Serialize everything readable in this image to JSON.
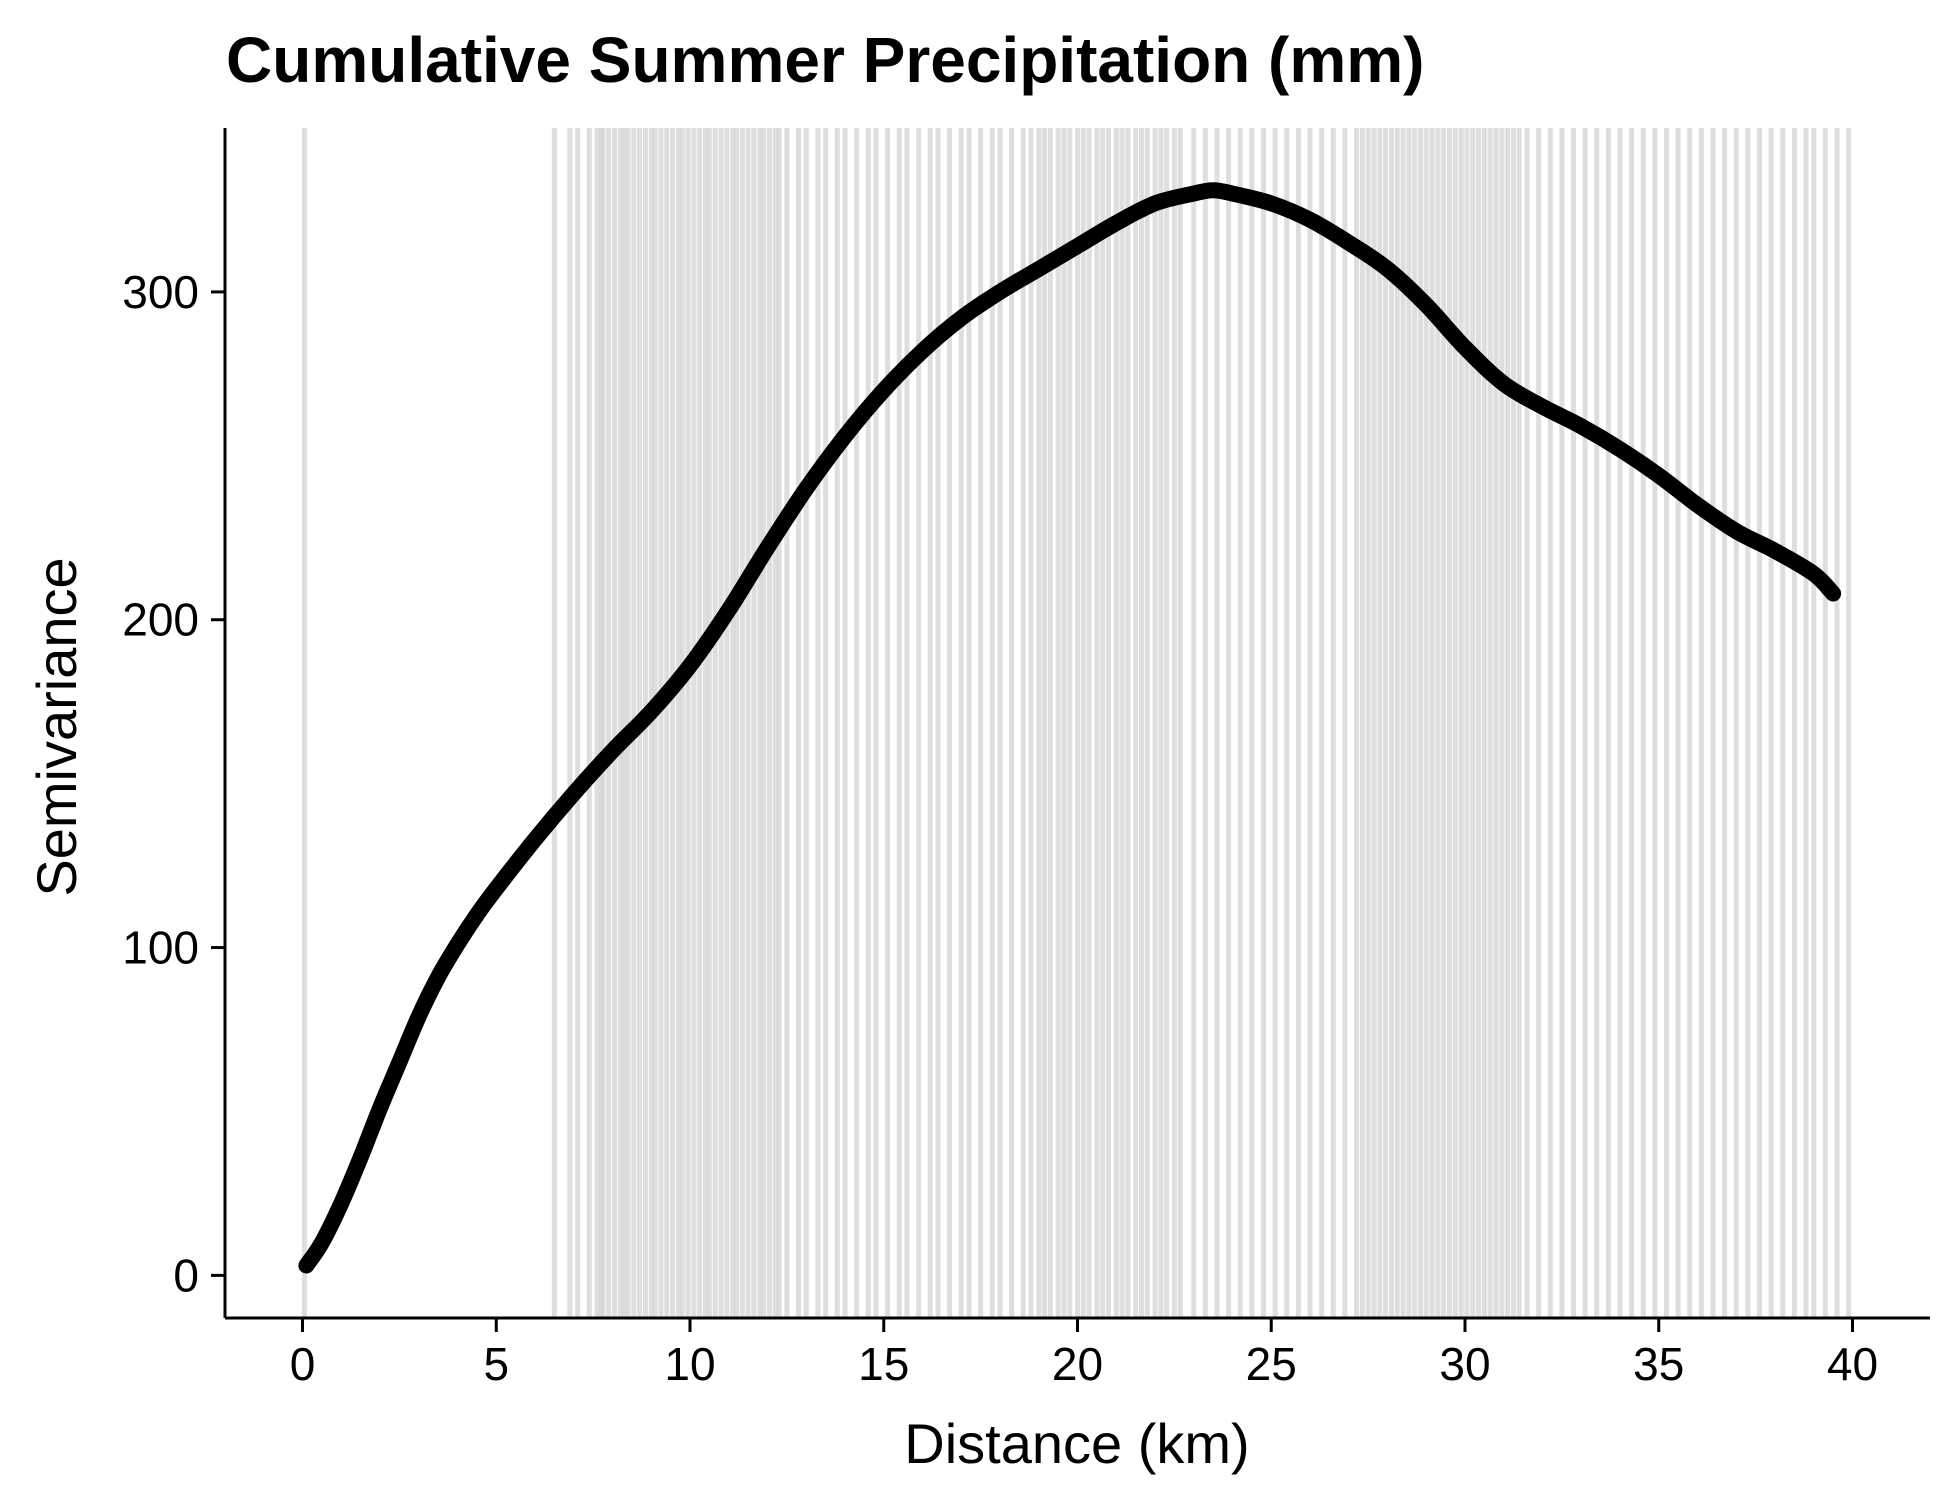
{
  "chart_data": {
    "type": "line",
    "title": "Cumulative Summer Precipitation (mm)",
    "xlabel": "Distance (km)",
    "ylabel": "Semivariance",
    "xlim": [
      -2,
      42
    ],
    "ylim": [
      -13,
      350
    ],
    "x_ticks": [
      0,
      5,
      10,
      15,
      20,
      25,
      30,
      35,
      40
    ],
    "y_ticks": [
      0,
      100,
      200,
      300
    ],
    "grid": false,
    "legend": "none",
    "colors": {
      "line": "#000000",
      "rug": "#d3d3d3",
      "axis": "#000000",
      "background": "#ffffff"
    },
    "series": [
      {
        "x": [
          0.1,
          0.5,
          1.0,
          1.5,
          2.0,
          2.5,
          3.0,
          3.5,
          4.0,
          4.5,
          5.0,
          6.0,
          7.0,
          8.0,
          9.0,
          10.0,
          11.0,
          12.0,
          13.0,
          14.0,
          15.0,
          16.0,
          17.0,
          18.0,
          19.0,
          20.0,
          21.0,
          22.0,
          23.0,
          23.5,
          24.0,
          25.0,
          26.0,
          27.0,
          28.0,
          29.0,
          30.0,
          31.0,
          32.0,
          33.0,
          34.0,
          35.0,
          36.0,
          37.0,
          38.0,
          39.0,
          39.5
        ],
        "y": [
          3,
          10,
          22,
          36,
          51,
          65,
          79,
          91,
          101,
          110,
          118,
          133,
          147,
          160,
          172,
          186,
          203,
          222,
          240,
          256,
          270,
          282,
          292,
          300,
          307,
          314,
          321,
          327,
          330,
          331,
          330,
          327,
          322,
          315,
          307,
          296,
          283,
          272,
          265,
          259,
          252,
          244,
          235,
          227,
          221,
          214,
          208
        ]
      }
    ],
    "rug_x": [
      0.05,
      6.5,
      6.9,
      7.1,
      7.4,
      7.6,
      7.7,
      7.75,
      7.9,
      8.05,
      8.2,
      8.3,
      8.4,
      8.55,
      8.7,
      8.85,
      9.0,
      9.1,
      9.25,
      9.4,
      9.55,
      9.7,
      9.8,
      9.95,
      10.1,
      10.25,
      10.4,
      10.5,
      10.65,
      10.8,
      10.95,
      11.1,
      11.2,
      11.35,
      11.5,
      11.65,
      11.8,
      11.9,
      12.05,
      12.2,
      12.3,
      12.5,
      12.8,
      13.0,
      13.3,
      13.5,
      13.8,
      14.0,
      14.3,
      14.6,
      14.8,
      15.1,
      15.4,
      15.6,
      15.9,
      16.2,
      16.4,
      16.7,
      17.0,
      17.2,
      17.5,
      17.8,
      18.0,
      18.3,
      18.6,
      18.8,
      19.0,
      19.15,
      19.3,
      19.5,
      19.65,
      19.8,
      20.0,
      20.15,
      20.3,
      20.5,
      20.65,
      20.8,
      21.0,
      21.15,
      21.3,
      21.5,
      21.65,
      21.8,
      22.0,
      22.15,
      22.3,
      22.5,
      22.65,
      23.0,
      23.3,
      23.6,
      23.9,
      24.2,
      24.5,
      24.8,
      25.1,
      25.4,
      25.7,
      26.0,
      26.3,
      26.6,
      26.9,
      27.2,
      27.35,
      27.5,
      27.65,
      27.8,
      27.95,
      28.1,
      28.25,
      28.4,
      28.55,
      28.7,
      28.85,
      29.0,
      29.15,
      29.3,
      29.45,
      29.6,
      29.75,
      29.9,
      30.05,
      30.2,
      30.35,
      30.5,
      30.65,
      30.8,
      30.95,
      31.1,
      31.25,
      31.4,
      31.6,
      31.9,
      32.2,
      32.5,
      32.8,
      33.1,
      33.4,
      33.7,
      34.0,
      34.3,
      34.6,
      34.9,
      35.2,
      35.5,
      35.8,
      36.1,
      36.4,
      36.7,
      37.0,
      37.3,
      37.6,
      37.9,
      38.2,
      38.5,
      38.8,
      39.0,
      39.3,
      39.6,
      39.9
    ]
  }
}
